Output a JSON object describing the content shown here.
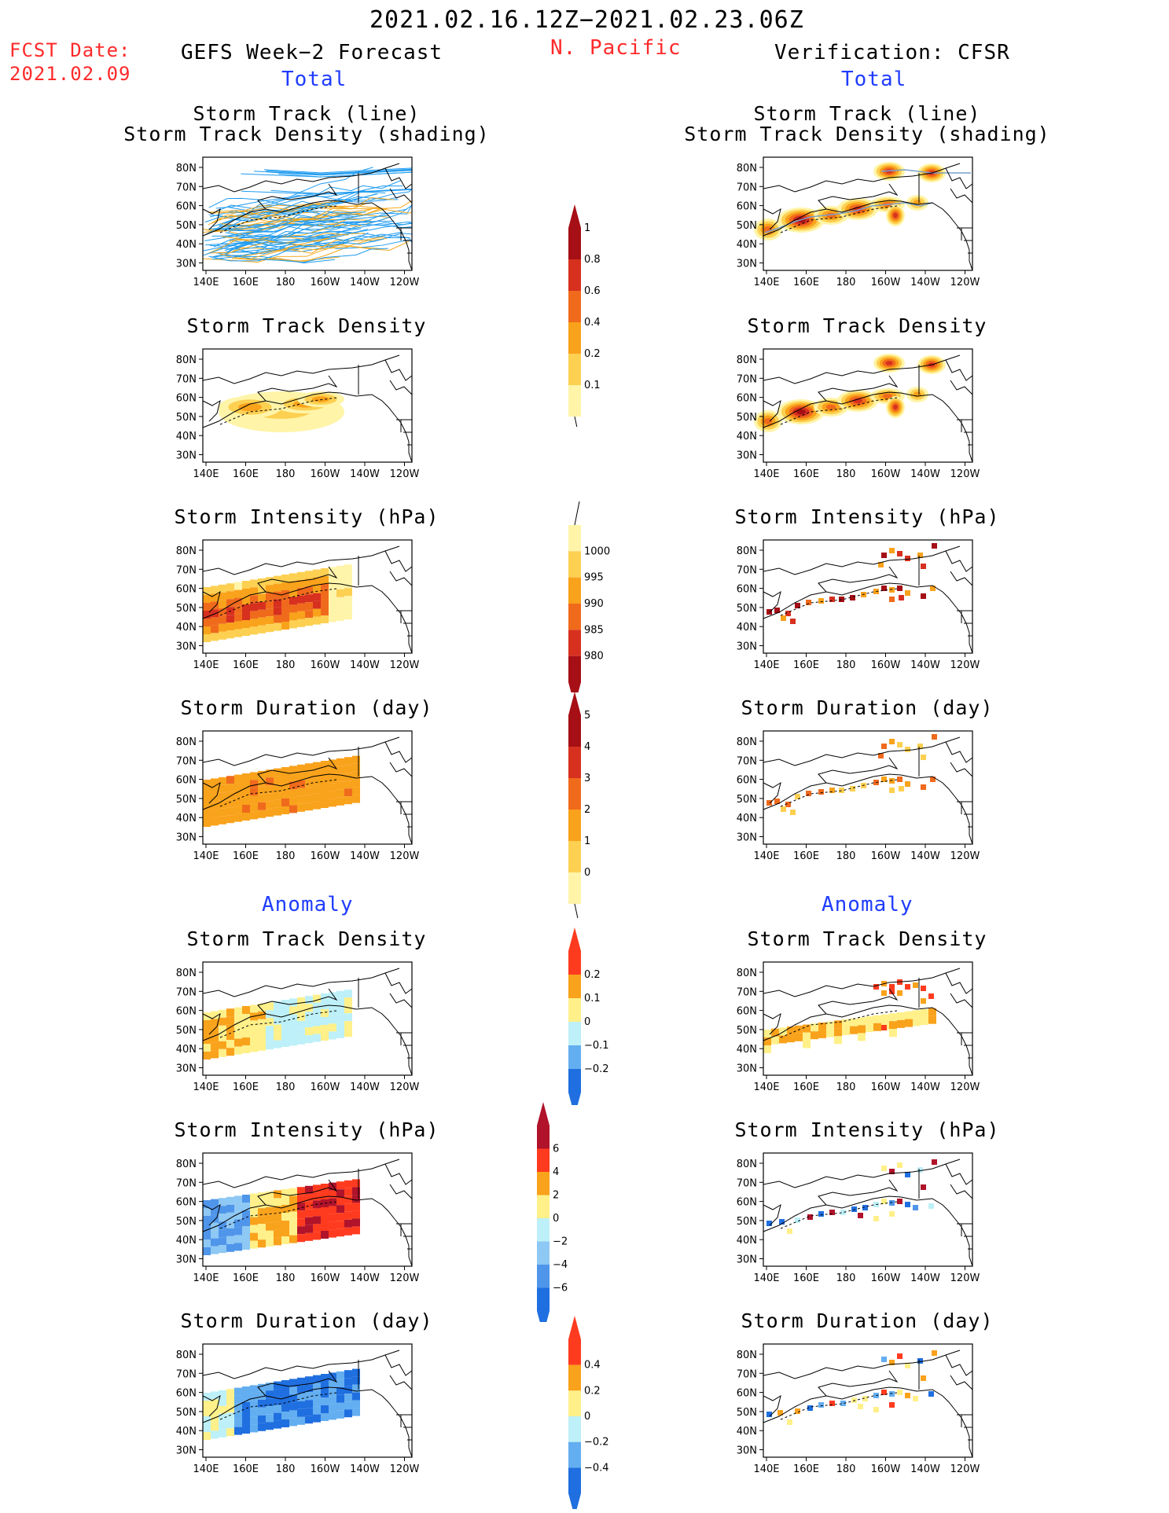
{
  "header": {
    "date_range": "2021.02.16.12Z−2021.02.23.06Z",
    "fcst_label": "FCST Date:",
    "fcst_date": "2021.02.09",
    "region": "N. Pacific",
    "left_title": "GEFS Week−2 Forecast",
    "right_title": "Verification: CFSR",
    "total_label": "Total",
    "anomaly_label": "Anomaly"
  },
  "panels": {
    "track_line_1": "Storm Track (line)",
    "track_line_2": "Storm Track Density (shading)",
    "density": "Storm Track Density",
    "intensity": "Storm Intensity (hPa)",
    "duration": "Storm Duration (day)"
  },
  "axes": {
    "lat_labels": [
      "80N",
      "70N",
      "60N",
      "50N",
      "40N",
      "30N"
    ],
    "lon_labels": [
      "140E",
      "160E",
      "180",
      "160W",
      "140W",
      "120W"
    ]
  },
  "colorbars": {
    "density_total": {
      "labels": [
        "1",
        "0.8",
        "0.6",
        "0.4",
        "0.2",
        "0.1"
      ],
      "colors": [
        "#a50f15",
        "#d7301f",
        "#f06a1c",
        "#f9a21b",
        "#fdd052",
        "#fff4a8"
      ]
    },
    "intensity_total": {
      "labels": [
        "1000",
        "995",
        "990",
        "985",
        "980"
      ],
      "colors": [
        "#fff4a8",
        "#fdd052",
        "#f9a21b",
        "#f06a1c",
        "#d7301f",
        "#a50f15"
      ]
    },
    "duration_total": {
      "labels": [
        "5",
        "4",
        "3",
        "2",
        "1",
        "0"
      ],
      "colors": [
        "#a50f15",
        "#d7301f",
        "#f06a1c",
        "#f9a21b",
        "#fdd052",
        "#fff4a8"
      ]
    },
    "density_anom": {
      "labels": [
        "0.2",
        "0.1",
        "0",
        "−0.1",
        "−0.2"
      ],
      "colors": [
        "#ff3b1f",
        "#f9a21b",
        "#fff08a",
        "#bdf0f8",
        "#63aef0",
        "#1f6fe0"
      ]
    },
    "intensity_anom": {
      "labels": [
        "6",
        "4",
        "2",
        "0",
        "−2",
        "−4",
        "−6"
      ],
      "colors": [
        "#b0132a",
        "#ff3b1f",
        "#f9a21b",
        "#fff08a",
        "#bdf0f8",
        "#8ec8f4",
        "#4f95ea",
        "#1f6fe0"
      ]
    },
    "duration_anom": {
      "labels": [
        "0.4",
        "0.2",
        "0",
        "−0.2",
        "−0.4"
      ],
      "colors": [
        "#ff3b1f",
        "#f9a21b",
        "#fff08a",
        "#bdf0f8",
        "#63aef0",
        "#1f6fe0"
      ]
    }
  },
  "colors": {
    "track_forecast_a": "#1e9bf0",
    "track_forecast_b": "#f4a81d",
    "track_verif": "#7aa0c8",
    "title_red": "#ff2a2a",
    "title_blue": "#1f3cff"
  }
}
